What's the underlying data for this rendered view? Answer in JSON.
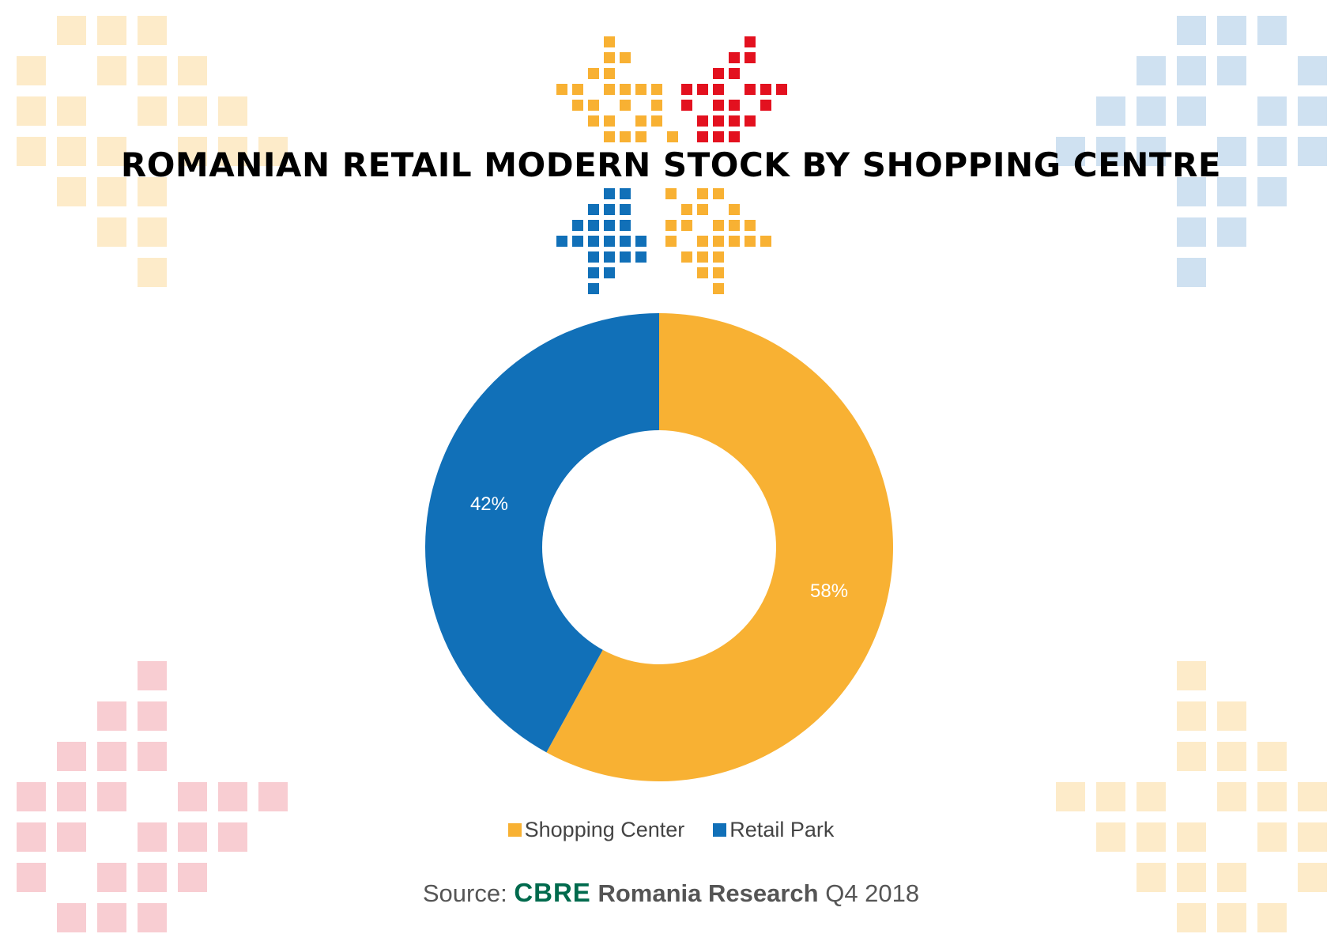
{
  "chart_data": {
    "type": "pie",
    "title": "ROMANIAN RETAIL MODERN STOCK BY SHOPPING CENTRE",
    "donut": true,
    "series": [
      {
        "name": "Shopping Center",
        "value": 58,
        "label": "58%",
        "color": "#f8b133"
      },
      {
        "name": "Retail Park",
        "value": 42,
        "label": "42%",
        "color": "#1170b8"
      }
    ],
    "legend_position": "bottom"
  },
  "source": {
    "prefix": "Source:",
    "brand": "CBRE",
    "name": "Romania Research",
    "period": "Q4 2018"
  },
  "decoration": {
    "motif_colors": {
      "yellow": "#f8b133",
      "red": "#e3111f",
      "blue": "#1170b8",
      "light_yellow": "#fdebc9",
      "light_blue": "#cfe1f1",
      "light_red": "#f8cdd2"
    }
  }
}
